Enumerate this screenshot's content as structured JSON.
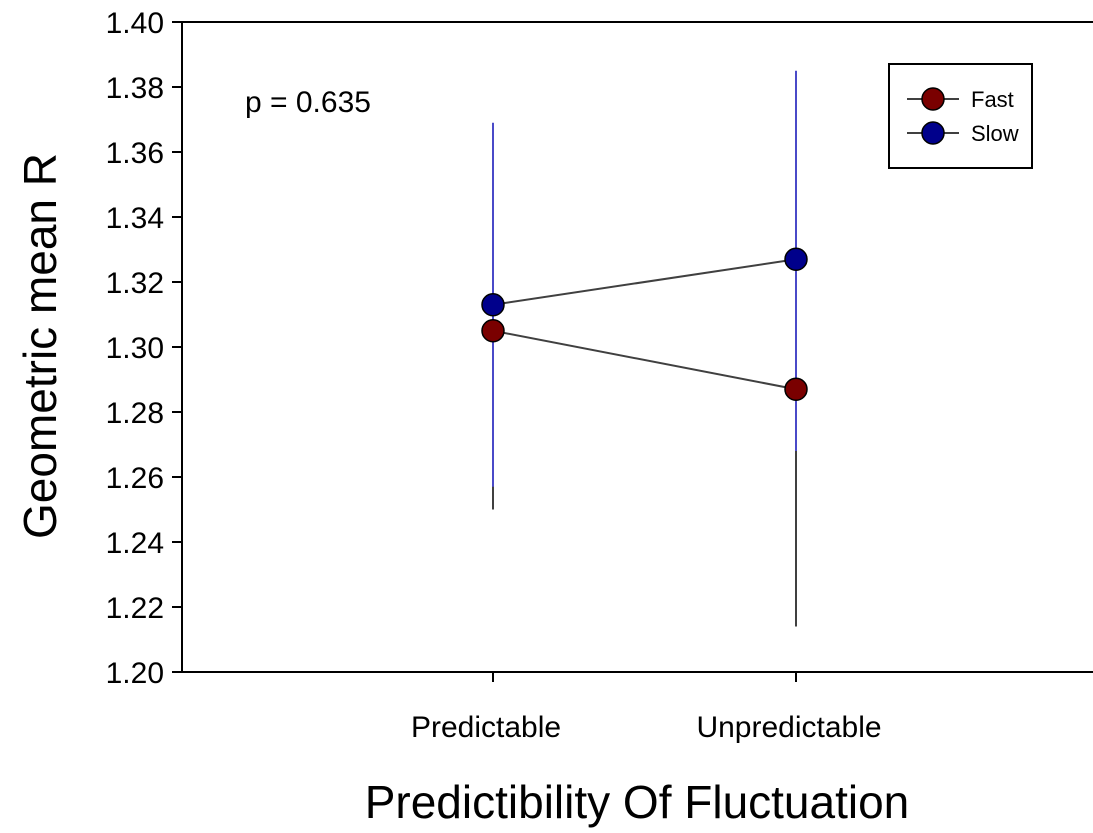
{
  "chart_data": {
    "type": "line",
    "title": "",
    "xlabel": "Predictibility Of Fluctuation",
    "ylabel": "Geometric mean R",
    "categories": [
      "Predictable",
      "Unpredictable"
    ],
    "ylim": [
      1.2,
      1.4
    ],
    "yticks": [
      "1.20",
      "1.22",
      "1.24",
      "1.26",
      "1.28",
      "1.30",
      "1.32",
      "1.34",
      "1.36",
      "1.38",
      "1.40"
    ],
    "grid": false,
    "legend_position": "top-right",
    "annotations": [
      {
        "text": "p = 0.635",
        "position": "top-left"
      }
    ],
    "series": [
      {
        "name": "Fast",
        "color": "#7a0000",
        "error_color": "#404040",
        "values": [
          1.305,
          1.287
        ],
        "error_low": [
          1.25,
          1.214
        ],
        "error_high": [
          1.359,
          1.36
        ]
      },
      {
        "name": "Slow",
        "color": "#00008b",
        "error_color": "#4a4ac8",
        "values": [
          1.313,
          1.327
        ],
        "error_low": [
          1.257,
          1.268
        ],
        "error_high": [
          1.369,
          1.385
        ]
      }
    ],
    "connector_color": "#404040"
  }
}
